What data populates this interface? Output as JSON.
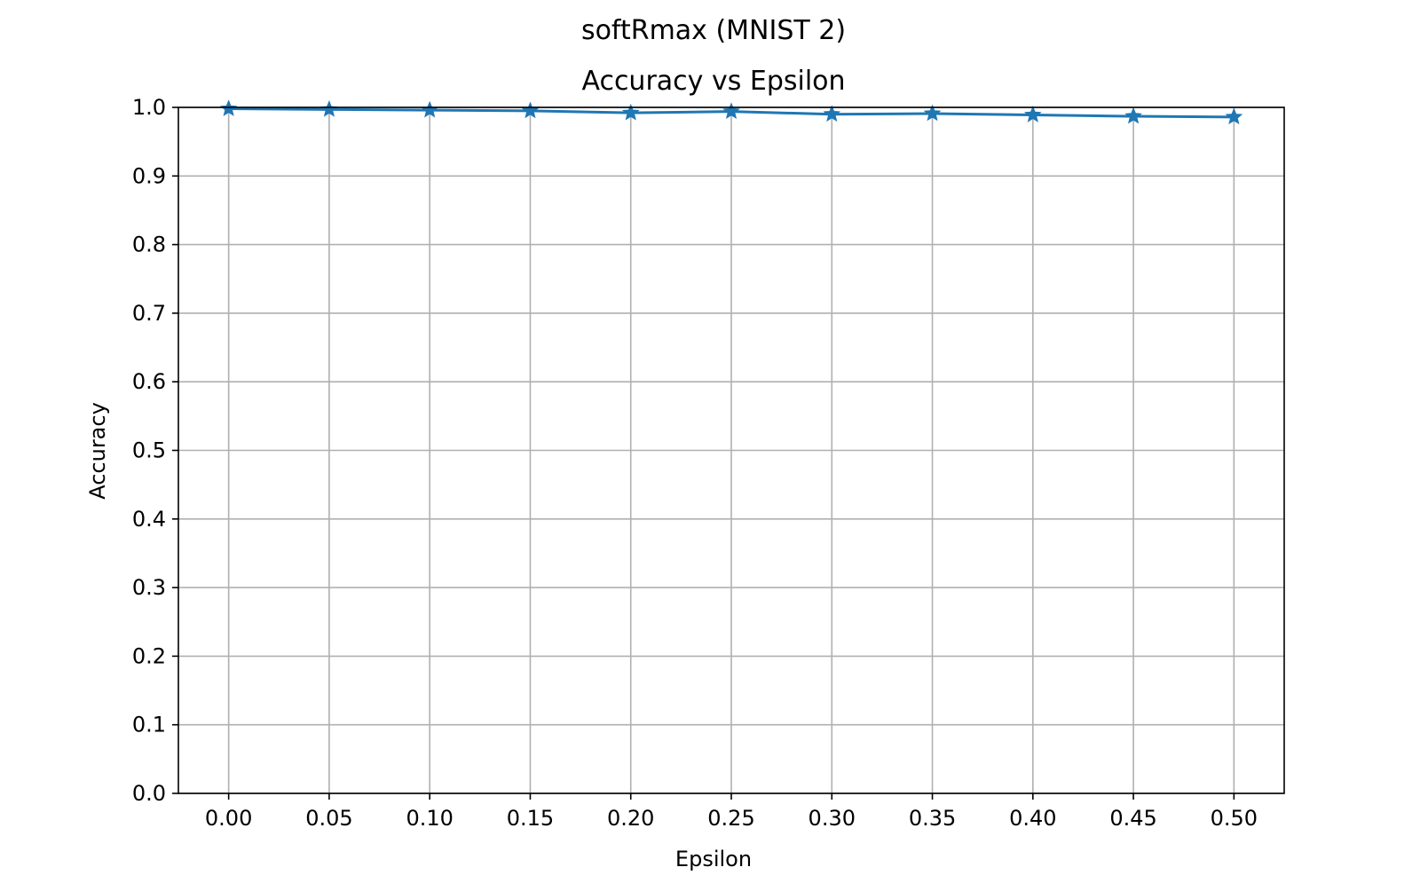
{
  "colors": {
    "series": "#1f77b4",
    "grid": "#b0b0b0",
    "axis": "#000000",
    "background": "#ffffff"
  },
  "chart_data": {
    "type": "line",
    "suptitle": "softRmax (MNIST 2)",
    "title": "Accuracy vs Epsilon",
    "xlabel": "Epsilon",
    "ylabel": "Accuracy",
    "xlim": [
      -0.025,
      0.525
    ],
    "ylim": [
      0.0,
      1.0
    ],
    "grid": true,
    "marker": "star",
    "x_ticks": [
      "0.00",
      "0.05",
      "0.10",
      "0.15",
      "0.20",
      "0.25",
      "0.30",
      "0.35",
      "0.40",
      "0.45",
      "0.50"
    ],
    "y_ticks": [
      "0.0",
      "0.1",
      "0.2",
      "0.3",
      "0.4",
      "0.5",
      "0.6",
      "0.7",
      "0.8",
      "0.9",
      "1.0"
    ],
    "series": [
      {
        "x": [
          0.0,
          0.05,
          0.1,
          0.15,
          0.2,
          0.25,
          0.3,
          0.35,
          0.4,
          0.45,
          0.5
        ],
        "values": [
          0.998,
          0.997,
          0.996,
          0.995,
          0.992,
          0.994,
          0.99,
          0.991,
          0.989,
          0.987,
          0.986
        ]
      }
    ]
  }
}
